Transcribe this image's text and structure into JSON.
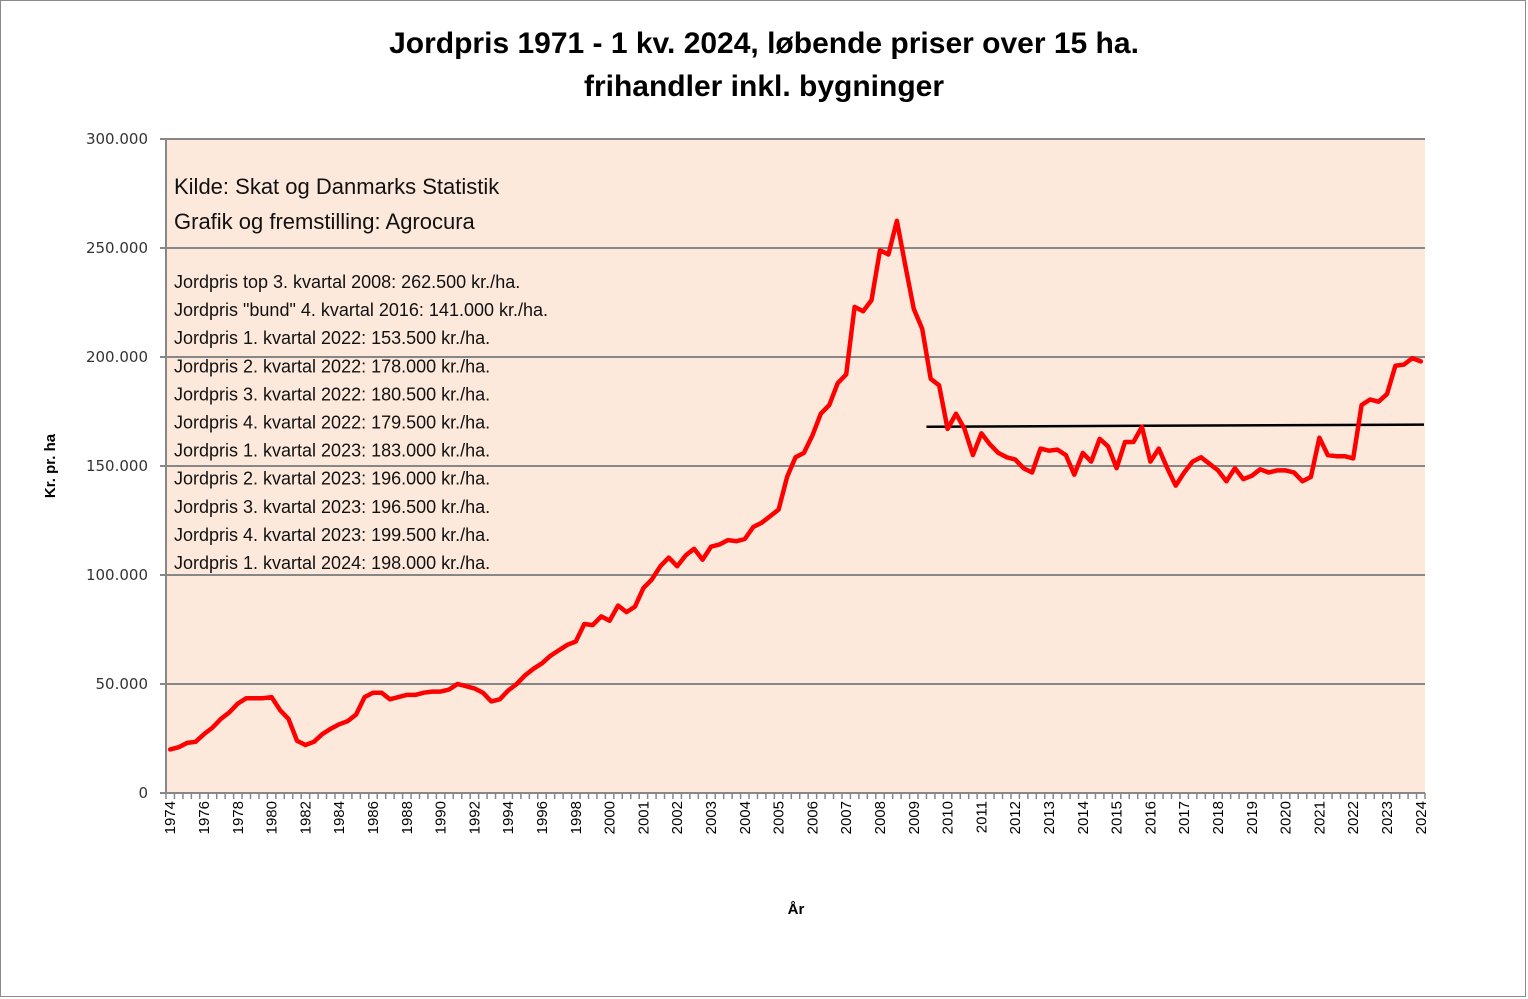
{
  "chart_data": {
    "type": "line",
    "title": [
      "Jordpris 1971 - 1 kv. 2024, løbende priser over 15 ha.",
      "frihandler inkl. bygninger"
    ],
    "xlabel": "År",
    "ylabel": "Kr. pr. ha",
    "ylim": [
      0,
      300000
    ],
    "yticks": [
      0,
      50000,
      100000,
      150000,
      200000,
      250000,
      300000
    ],
    "ytick_labels": [
      "0",
      "50.000",
      "100.000",
      "150.000",
      "200.000",
      "250.000",
      "300.000"
    ],
    "grid": true,
    "category_count": 149,
    "xtick_labels": [
      {
        "label": "1974",
        "index": 0
      },
      {
        "label": "1976",
        "index": 4
      },
      {
        "label": "1978",
        "index": 8
      },
      {
        "label": "1980",
        "index": 12
      },
      {
        "label": "1982",
        "index": 16
      },
      {
        "label": "1984",
        "index": 20
      },
      {
        "label": "1986",
        "index": 24
      },
      {
        "label": "1988",
        "index": 28
      },
      {
        "label": "1990",
        "index": 32
      },
      {
        "label": "1992",
        "index": 36
      },
      {
        "label": "1994",
        "index": 40
      },
      {
        "label": "1996",
        "index": 44
      },
      {
        "label": "1998",
        "index": 48
      },
      {
        "label": "2000",
        "index": 52
      },
      {
        "label": "2001",
        "index": 56
      },
      {
        "label": "2002",
        "index": 60
      },
      {
        "label": "2003",
        "index": 64
      },
      {
        "label": "2004",
        "index": 68
      },
      {
        "label": "2005",
        "index": 72
      },
      {
        "label": "2006",
        "index": 76
      },
      {
        "label": "2007",
        "index": 80
      },
      {
        "label": "2008",
        "index": 84
      },
      {
        "label": "2009",
        "index": 88
      },
      {
        "label": "2010",
        "index": 92
      },
      {
        "label": "2011",
        "index": 96
      },
      {
        "label": "2012",
        "index": 100
      },
      {
        "label": "2013",
        "index": 104
      },
      {
        "label": "2014",
        "index": 108
      },
      {
        "label": "2015",
        "index": 112
      },
      {
        "label": "2016",
        "index": 116
      },
      {
        "label": "2017",
        "index": 120
      },
      {
        "label": "2018",
        "index": 124
      },
      {
        "label": "2019",
        "index": 128
      },
      {
        "label": "2020",
        "index": 132
      },
      {
        "label": "2021",
        "index": 136
      },
      {
        "label": "2022",
        "index": 140
      },
      {
        "label": "2023",
        "index": 144
      },
      {
        "label": "2024",
        "index": 148
      }
    ],
    "series": [
      {
        "name": "Jordpris",
        "color": "#ff0000",
        "values": [
          20000,
          21000,
          23000,
          23500,
          27000,
          30000,
          34000,
          37000,
          41000,
          43500,
          43500,
          43500,
          44000,
          38000,
          34000,
          24000,
          22000,
          23500,
          27000,
          29500,
          31500,
          33000,
          36000,
          44000,
          46000,
          46000,
          43000,
          44000,
          45000,
          45000,
          46000,
          46500,
          46500,
          47500,
          50000,
          49000,
          48000,
          46000,
          42000,
          43000,
          47000,
          50000,
          54000,
          57000,
          59500,
          63000,
          65500,
          68000,
          69500,
          77500,
          77000,
          81000,
          79000,
          86000,
          83000,
          85500,
          94000,
          98000,
          104000,
          108000,
          104000,
          109000,
          112000,
          107000,
          113000,
          114000,
          116000,
          115500,
          116500,
          122000,
          124000,
          127000,
          130000,
          145000,
          154000,
          156000,
          164000,
          174000,
          178000,
          188000,
          192000,
          223000,
          221000,
          226000,
          249000,
          247000,
          262500,
          242000,
          222000,
          213000,
          190000,
          187000,
          167000,
          174000,
          167000,
          155000,
          165000,
          160000,
          156000,
          154000,
          153000,
          149000,
          147000,
          158000,
          157000,
          157500,
          155000,
          146000,
          156000,
          152000,
          162500,
          159000,
          149000,
          161000,
          161000,
          168000,
          152000,
          158000,
          149000,
          141000,
          147000,
          152000,
          154000,
          151000,
          148000,
          143000,
          149000,
          144000,
          145500,
          148500,
          147000,
          148000,
          148000,
          147000,
          143000,
          145000,
          163000,
          155000,
          154500,
          154500,
          153500,
          178000,
          180500,
          179500,
          183000,
          196000,
          196500,
          199500,
          198000
        ]
      },
      {
        "name": "Reference line",
        "color": "#000000",
        "start_index": 89.5,
        "end_index": 148,
        "start_value": 168000,
        "end_value": 169000
      }
    ],
    "annotations": {
      "source": [
        "Kilde: Skat og Danmarks Statistik",
        "Grafik og fremstilling: Agrocura"
      ],
      "notes": [
        "Jordpris top 3. kvartal 2008: 262.500 kr./ha.",
        "Jordpris \"bund\" 4. kvartal 2016: 141.000 kr./ha.",
        "Jordpris 1. kvartal 2022: 153.500 kr./ha.",
        "Jordpris 2. kvartal 2022: 178.000 kr./ha.",
        "Jordpris 3. kvartal 2022: 180.500 kr./ha.",
        "Jordpris 4. kvartal 2022: 179.500 kr./ha.",
        "Jordpris 1. kvartal 2023: 183.000 kr./ha.",
        "Jordpris 2. kvartal 2023: 196.000 kr./ha.",
        "Jordpris 3. kvartal 2023: 196.500 kr./ha.",
        "Jordpris 4. kvartal 2023: 199.500 kr./ha.",
        "Jordpris 1. kvartal 2024: 198.000 kr./ha."
      ]
    },
    "colors": {
      "plot_background": "#fde9db",
      "gridline": "#878787",
      "line": "#ff0000"
    }
  }
}
